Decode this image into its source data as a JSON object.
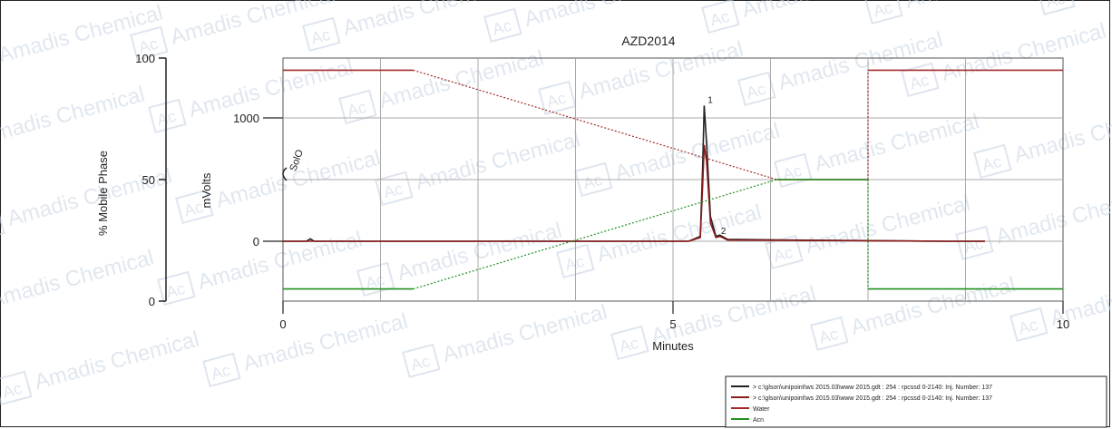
{
  "chart_data": {
    "type": "line",
    "title": "AZD2014",
    "xlabel": "Minutes",
    "ylabel_left": "% Mobile Phase",
    "ylabel_right": "mVolts",
    "xlim": [
      0,
      10
    ],
    "ylim_percent": [
      0,
      100
    ],
    "xticks": [
      0,
      5,
      10
    ],
    "yticks_percent": [
      0,
      50,
      100
    ],
    "yticks_mvolts": [
      0,
      1000
    ],
    "grid": true,
    "legend_position": "bottom-right",
    "peak_labels": [
      "1",
      "2"
    ],
    "series": [
      {
        "name": "> c:\\glson\\unipoint\\ws 2015.03\\www 2015.gdt : 254 : rpcssd 0-2140: Inj. Number: 137",
        "color": "#222222",
        "x": [
          0,
          0.3,
          0.35,
          0.4,
          5.2,
          5.35,
          5.38,
          5.4,
          5.43,
          5.48,
          5.55,
          5.6,
          5.7,
          6.5,
          7.5,
          8.5,
          9.0
        ],
        "y": [
          0,
          0,
          20,
          0,
          0,
          40,
          600,
          1100,
          800,
          200,
          40,
          50,
          15,
          10,
          5,
          0,
          0
        ]
      },
      {
        "name": "> c:\\glson\\unipoint\\ws 2015.03\\www 2015.gdt : 254 : rpcssd 0-2140: Inj. Number: 137",
        "color": "#8b1a1a",
        "x": [
          0,
          5.2,
          5.35,
          5.38,
          5.4,
          5.43,
          5.48,
          5.55,
          5.6,
          5.7,
          6.5,
          7.5,
          8.5,
          9.0
        ],
        "y": [
          0,
          0,
          30,
          450,
          780,
          650,
          150,
          30,
          40,
          10,
          8,
          4,
          0,
          0
        ]
      },
      {
        "name": "Water",
        "color": "#a52a2a",
        "x": [
          0,
          1.67,
          6.33,
          7.5,
          7.5,
          10
        ],
        "y": [
          95,
          95,
          50,
          50,
          95,
          95
        ],
        "dashed_segments": [
          1,
          3
        ]
      },
      {
        "name": "Acn",
        "color": "#1f8f1f",
        "x": [
          0,
          1.67,
          6.33,
          7.5,
          7.5,
          10
        ],
        "y": [
          5,
          5,
          50,
          50,
          5,
          5
        ],
        "dashed_segments": [
          1,
          3
        ]
      }
    ],
    "solvent_label": "SolO"
  },
  "watermark_text": "Amadis Chemical",
  "watermark_logo": "Ac"
}
